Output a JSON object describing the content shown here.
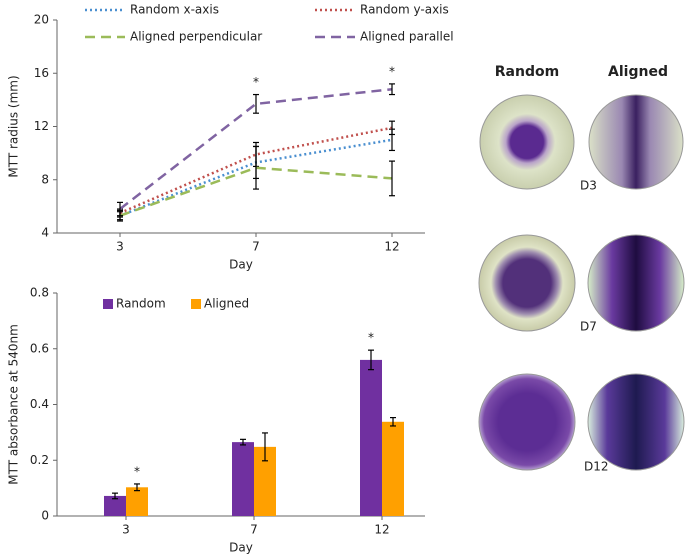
{
  "chart_data": [
    {
      "type": "line",
      "x_label": "Day",
      "y_label": "MTT radius (mm)",
      "categories": [
        "3",
        "7",
        "12"
      ],
      "ylim": [
        4,
        20
      ],
      "yticks": [
        4,
        8,
        12,
        16,
        20
      ],
      "series": [
        {
          "name": "Random  x-axis",
          "color": "#4a8fd0",
          "style": "dotted",
          "values": [
            5.3,
            9.3,
            11.0
          ],
          "errors": [
            0.4,
            1.2,
            0.8
          ]
        },
        {
          "name": "Random y-axis",
          "color": "#c0504d",
          "style": "dotted",
          "values": [
            5.5,
            9.9,
            11.9
          ],
          "errors": [
            0.3,
            0.9,
            0.5
          ]
        },
        {
          "name": "Aligned perpendicular",
          "color": "#9bbb59",
          "style": "dashed",
          "values": [
            5.3,
            8.9,
            8.1
          ],
          "errors": [
            0.3,
            1.6,
            1.3
          ]
        },
        {
          "name": "Aligned parallel",
          "color": "#8064a2",
          "style": "dashed",
          "values": [
            5.8,
            13.7,
            14.8
          ],
          "errors": [
            0.5,
            0.7,
            0.4
          ]
        }
      ],
      "annotations": [
        {
          "text": "*",
          "category": 1,
          "series": 3
        },
        {
          "text": "*",
          "category": 2,
          "series": 3
        }
      ]
    },
    {
      "type": "bar",
      "x_label": "Day",
      "y_label": "MTT absorbance at 540nm",
      "categories": [
        "3",
        "7",
        "12"
      ],
      "ylim": [
        0,
        0.8
      ],
      "yticks": [
        0,
        0.2,
        0.4,
        0.6,
        0.8
      ],
      "series": [
        {
          "name": "Random",
          "color": "#7030a0",
          "values": [
            0.072,
            0.265,
            0.56
          ],
          "errors": [
            0.01,
            0.01,
            0.035
          ]
        },
        {
          "name": "Aligned",
          "color": "#ffa000",
          "values": [
            0.103,
            0.248,
            0.338
          ],
          "errors": [
            0.012,
            0.05,
            0.015
          ]
        }
      ],
      "annotations": [
        {
          "text": "*",
          "category": 0,
          "series": 1
        },
        {
          "text": "*",
          "category": 2,
          "series": 0
        }
      ]
    }
  ],
  "images": {
    "headers": [
      "Random",
      "Aligned"
    ],
    "labels": [
      "D3",
      "D7",
      "D12"
    ]
  }
}
